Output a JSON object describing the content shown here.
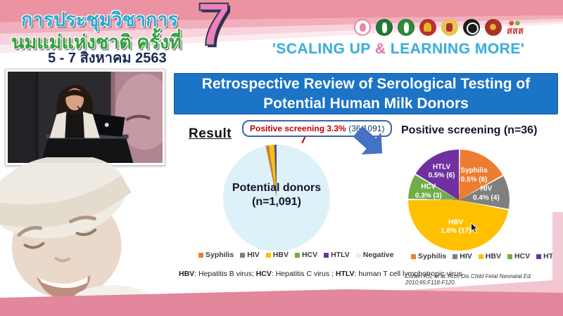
{
  "header": {
    "line1": "การประชุมวิชาการ",
    "line2": "นมแม่แห่งชาติ ครั้งที่",
    "date": "5 - 7 สิงหาคม 2563",
    "number": "7",
    "slogan_prefix": "'SCALING UP ",
    "slogan_amp": "&",
    "slogan_suffix": " LEARNING MORE'",
    "sss_logo_text": "สสส",
    "logos": [
      "mother-and-child",
      "public-health-green",
      "health-department-green",
      "university-red-gold",
      "royal-emblem-gold",
      "association-black-seal",
      "college-red-seal",
      "thaihealth-sss"
    ]
  },
  "slide": {
    "title": "Retrospective Review of Serological Testing of Potential Human Milk Donors",
    "result_label": "Result",
    "callout_bold": "Positive screening 3.3%",
    "callout_rest": " (36/1091)",
    "footnote": [
      {
        "term": "HBV",
        "def": ": Hepatitis B virus; "
      },
      {
        "term": "HCV",
        "def": ": Hepatitis C virus ; "
      },
      {
        "term": "HTLV",
        "def": ": human T cell lymphotropic virus"
      }
    ],
    "citation": "Cohen RS, et al. Arch Dis Child Fetal Neonatal Ed. 2010;95:F118-F120.",
    "colors": {
      "banner_blue": "#1b74c5",
      "arrow_blue": "#4472c4",
      "callout_red": "#c00000"
    }
  },
  "chart_data": [
    {
      "type": "pie",
      "title": "Potential donors (n=1,091)",
      "center_label_line1": "Potential donors",
      "center_label_line2": "(n=1,091)",
      "total": 1091,
      "slices": [
        {
          "label": "Syphilis",
          "value": 6,
          "color": "#ed7d31"
        },
        {
          "label": "HIV",
          "value": 4,
          "color": "#7f7f7f"
        },
        {
          "label": "HBV",
          "value": 17,
          "color": "#ffc000"
        },
        {
          "label": "HCV",
          "value": 3,
          "color": "#70ad47"
        },
        {
          "label": "HTLV",
          "value": 6,
          "color": "#7030a0"
        },
        {
          "label": "Negative",
          "value": 1055,
          "color": "#ddf1f9"
        }
      ],
      "legend": [
        "Syphilis",
        "HIV",
        "HBV",
        "HCV",
        "HTLV",
        "Negative"
      ],
      "legend_position": "bottom"
    },
    {
      "type": "pie",
      "title": "Positive screening (n=36)",
      "total": 36,
      "slices": [
        {
          "label": "Syphilis",
          "value": 6,
          "pct_label": "0.5% (6)",
          "color": "#ed7d31"
        },
        {
          "label": "HIV",
          "value": 4,
          "pct_label": "0.4% (4)",
          "color": "#7f7f7f"
        },
        {
          "label": "HBV",
          "value": 17,
          "pct_label": "1.6% (17)",
          "color": "#ffc000"
        },
        {
          "label": "HCV",
          "value": 3,
          "pct_label": "0.3% (3)",
          "color": "#70ad47"
        },
        {
          "label": "HTLV",
          "value": 6,
          "pct_label": "0.5% (6)",
          "color": "#7030a0"
        }
      ],
      "legend": [
        "Syphilis",
        "HIV",
        "HBV",
        "HCV",
        "HTLV"
      ],
      "legend_position": "bottom"
    }
  ]
}
